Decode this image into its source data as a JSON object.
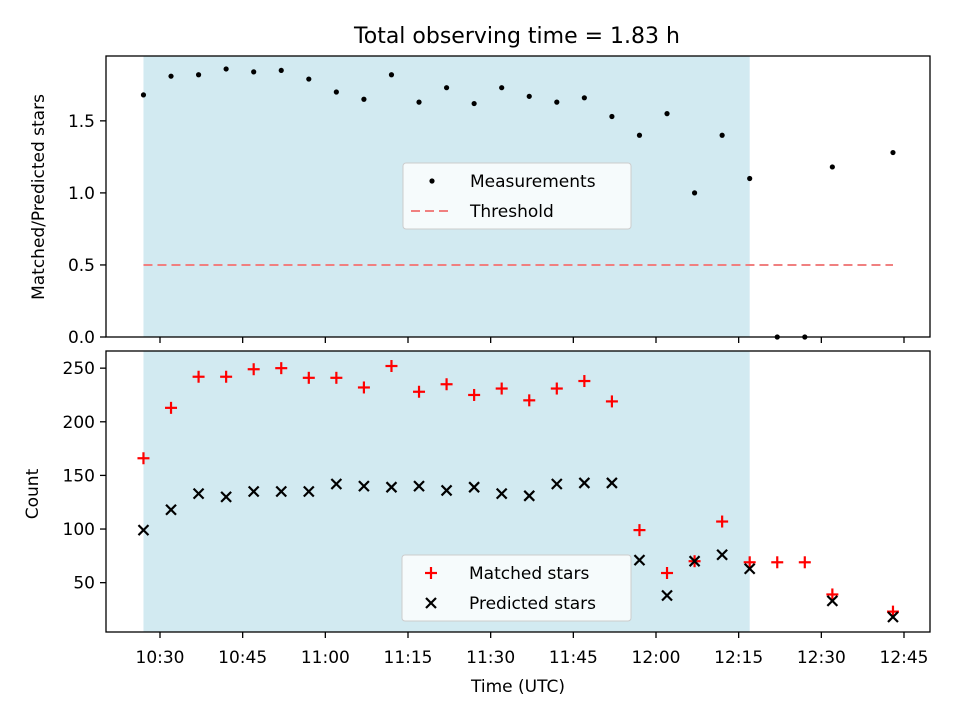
{
  "title": "Total observing time = 1.83 h",
  "colors": {
    "shade": "#add8e6",
    "measurement": "#000000",
    "threshold": "#f08080",
    "matched": "#ff0000",
    "predicted": "#000000"
  },
  "chart_data": [
    {
      "type": "scatter",
      "ylabel": "Matched/Predicted stars",
      "ylim": [
        0,
        1.95
      ],
      "yticks": [
        "0.0",
        "0.5",
        "1.0",
        "1.5"
      ],
      "shaded_span": [
        "10:27",
        "12:17"
      ],
      "legend": {
        "position": "center",
        "entries": [
          "Measurements",
          "Threshold"
        ]
      },
      "series": [
        {
          "name": "Measurements",
          "x": [
            "10:27",
            "10:32",
            "10:37",
            "10:42",
            "10:47",
            "10:52",
            "10:57",
            "11:02",
            "11:07",
            "11:12",
            "11:17",
            "11:22",
            "11:27",
            "11:32",
            "11:37",
            "11:42",
            "11:47",
            "11:52",
            "11:57",
            "12:02",
            "12:07",
            "12:12",
            "12:17",
            "12:22",
            "12:27",
            "12:32",
            "12:43"
          ],
          "y": [
            1.68,
            1.81,
            1.82,
            1.86,
            1.84,
            1.85,
            1.79,
            1.7,
            1.65,
            1.82,
            1.63,
            1.73,
            1.62,
            1.73,
            1.67,
            1.63,
            1.66,
            1.53,
            1.4,
            1.55,
            1.0,
            1.4,
            1.1,
            0.0,
            0.0,
            1.18,
            1.28
          ]
        },
        {
          "name": "Threshold",
          "x": [
            "10:27",
            "12:43"
          ],
          "y": [
            0.5,
            0.5
          ]
        }
      ]
    },
    {
      "type": "scatter",
      "xlabel": "Time (UTC)",
      "ylabel": "Count",
      "ylim": [
        4,
        266
      ],
      "yticks": [
        "50",
        "100",
        "150",
        "200",
        "250"
      ],
      "xticks": [
        "10:30",
        "10:45",
        "11:00",
        "11:15",
        "11:30",
        "11:45",
        "12:00",
        "12:15",
        "12:30",
        "12:45"
      ],
      "shaded_span": [
        "10:27",
        "12:17"
      ],
      "legend": {
        "position": "lower center",
        "entries": [
          "Matched stars",
          "Predicted stars"
        ]
      },
      "series": [
        {
          "name": "Matched stars",
          "x": [
            "10:27",
            "10:32",
            "10:37",
            "10:42",
            "10:47",
            "10:52",
            "10:57",
            "11:02",
            "11:07",
            "11:12",
            "11:17",
            "11:22",
            "11:27",
            "11:32",
            "11:37",
            "11:42",
            "11:47",
            "11:52",
            "11:57",
            "12:02",
            "12:07",
            "12:12",
            "12:17",
            "12:22",
            "12:27",
            "12:32",
            "12:43"
          ],
          "y": [
            166,
            213,
            242,
            242,
            249,
            250,
            241,
            241,
            232,
            252,
            228,
            235,
            225,
            231,
            220,
            231,
            238,
            219,
            99,
            59,
            70,
            107,
            69,
            69,
            69,
            39,
            23
          ]
        },
        {
          "name": "Predicted stars",
          "x": [
            "10:27",
            "10:32",
            "10:37",
            "10:42",
            "10:47",
            "10:52",
            "10:57",
            "11:02",
            "11:07",
            "11:12",
            "11:17",
            "11:22",
            "11:27",
            "11:32",
            "11:37",
            "11:42",
            "11:47",
            "11:52",
            "11:57",
            "12:02",
            "12:07",
            "12:12",
            "12:17",
            "12:32",
            "12:43"
          ],
          "y": [
            99,
            118,
            133,
            130,
            135,
            135,
            135,
            142,
            140,
            139,
            140,
            136,
            139,
            133,
            131,
            142,
            143,
            143,
            71,
            38,
            70,
            76,
            63,
            33,
            18
          ]
        }
      ]
    }
  ]
}
